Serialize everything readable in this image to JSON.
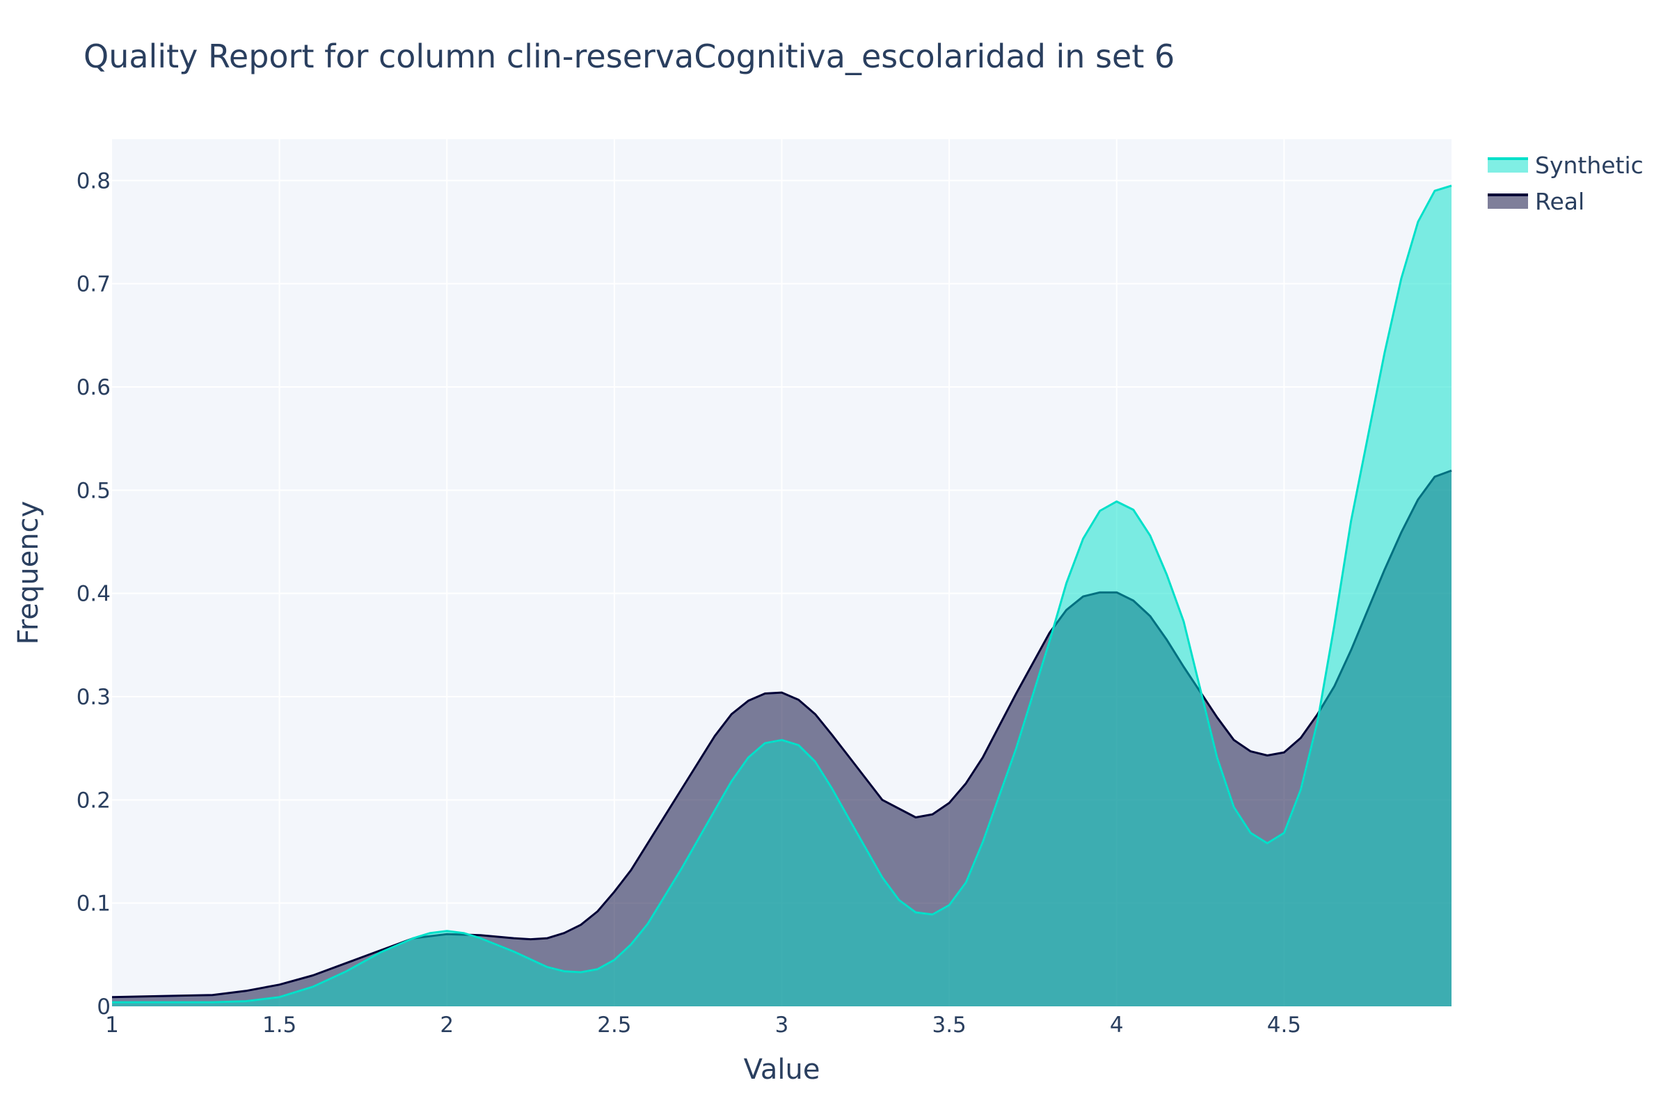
{
  "chart_data": {
    "type": "area",
    "title": "Quality Report for column clin-reservaCognitiva_escolaridad in set 6",
    "xlabel": "Value",
    "ylabel": "Frequency",
    "xlim": [
      1,
      5
    ],
    "ylim": [
      0,
      0.84
    ],
    "x_ticks": [
      1,
      1.5,
      2,
      2.5,
      3,
      3.5,
      4,
      4.5
    ],
    "x_tick_labels": [
      "1",
      "1.5",
      "2",
      "2.5",
      "3",
      "3.5",
      "4",
      "4.5"
    ],
    "y_ticks": [
      0,
      0.1,
      0.2,
      0.3,
      0.4,
      0.5,
      0.6,
      0.7,
      0.8
    ],
    "y_tick_labels": [
      "0",
      "0.1",
      "0.2",
      "0.3",
      "0.4",
      "0.5",
      "0.6",
      "0.7",
      "0.8"
    ],
    "grid": true,
    "legend_position": "top-right",
    "series": [
      {
        "name": "Real",
        "color": "#000036",
        "fill": "rgba(0,0,54,0.5)",
        "x": [
          1,
          1.3,
          1.4,
          1.5,
          1.6,
          1.7,
          1.8,
          1.9,
          2,
          2.1,
          2.2,
          2.25,
          2.3,
          2.35,
          2.4,
          2.45,
          2.5,
          2.55,
          2.6,
          2.7,
          2.8,
          2.85,
          2.9,
          2.95,
          3,
          3.05,
          3.1,
          3.15,
          3.2,
          3.3,
          3.4,
          3.45,
          3.5,
          3.55,
          3.6,
          3.65,
          3.7,
          3.8,
          3.85,
          3.9,
          3.95,
          4,
          4.05,
          4.1,
          4.15,
          4.2,
          4.3,
          4.35,
          4.4,
          4.45,
          4.5,
          4.55,
          4.6,
          4.65,
          4.7,
          4.8,
          4.85,
          4.9,
          4.95,
          5
        ],
        "y": [
          0.009,
          0.011,
          0.015,
          0.021,
          0.03,
          0.042,
          0.054,
          0.066,
          0.07,
          0.069,
          0.066,
          0.065,
          0.066,
          0.071,
          0.079,
          0.092,
          0.111,
          0.132,
          0.158,
          0.21,
          0.262,
          0.283,
          0.296,
          0.303,
          0.304,
          0.297,
          0.283,
          0.263,
          0.242,
          0.2,
          0.183,
          0.186,
          0.197,
          0.216,
          0.241,
          0.272,
          0.303,
          0.362,
          0.384,
          0.397,
          0.401,
          0.401,
          0.393,
          0.378,
          0.355,
          0.329,
          0.28,
          0.258,
          0.247,
          0.243,
          0.246,
          0.26,
          0.283,
          0.31,
          0.345,
          0.423,
          0.459,
          0.491,
          0.513,
          0.519
        ]
      },
      {
        "name": "Synthetic",
        "color": "#01e0c9",
        "fill": "rgba(1,224,201,0.5)",
        "x": [
          1,
          1.3,
          1.4,
          1.5,
          1.6,
          1.7,
          1.8,
          1.9,
          1.95,
          2,
          2.05,
          2.1,
          2.2,
          2.3,
          2.35,
          2.4,
          2.45,
          2.5,
          2.55,
          2.6,
          2.7,
          2.8,
          2.85,
          2.9,
          2.95,
          3,
          3.05,
          3.1,
          3.15,
          3.2,
          3.3,
          3.35,
          3.4,
          3.45,
          3.5,
          3.55,
          3.6,
          3.7,
          3.8,
          3.85,
          3.9,
          3.95,
          4,
          4.05,
          4.1,
          4.15,
          4.2,
          4.3,
          4.35,
          4.4,
          4.45,
          4.5,
          4.55,
          4.6,
          4.65,
          4.7,
          4.8,
          4.85,
          4.9,
          4.95,
          5
        ],
        "y": [
          0.004,
          0.004,
          0.005,
          0.009,
          0.019,
          0.034,
          0.052,
          0.066,
          0.071,
          0.073,
          0.071,
          0.066,
          0.053,
          0.038,
          0.034,
          0.033,
          0.036,
          0.045,
          0.06,
          0.08,
          0.133,
          0.19,
          0.218,
          0.241,
          0.255,
          0.258,
          0.253,
          0.237,
          0.211,
          0.182,
          0.125,
          0.103,
          0.091,
          0.089,
          0.098,
          0.12,
          0.159,
          0.25,
          0.354,
          0.41,
          0.453,
          0.48,
          0.489,
          0.481,
          0.456,
          0.418,
          0.373,
          0.241,
          0.193,
          0.168,
          0.158,
          0.168,
          0.21,
          0.276,
          0.369,
          0.47,
          0.633,
          0.705,
          0.76,
          0.79,
          0.795
        ]
      }
    ]
  }
}
